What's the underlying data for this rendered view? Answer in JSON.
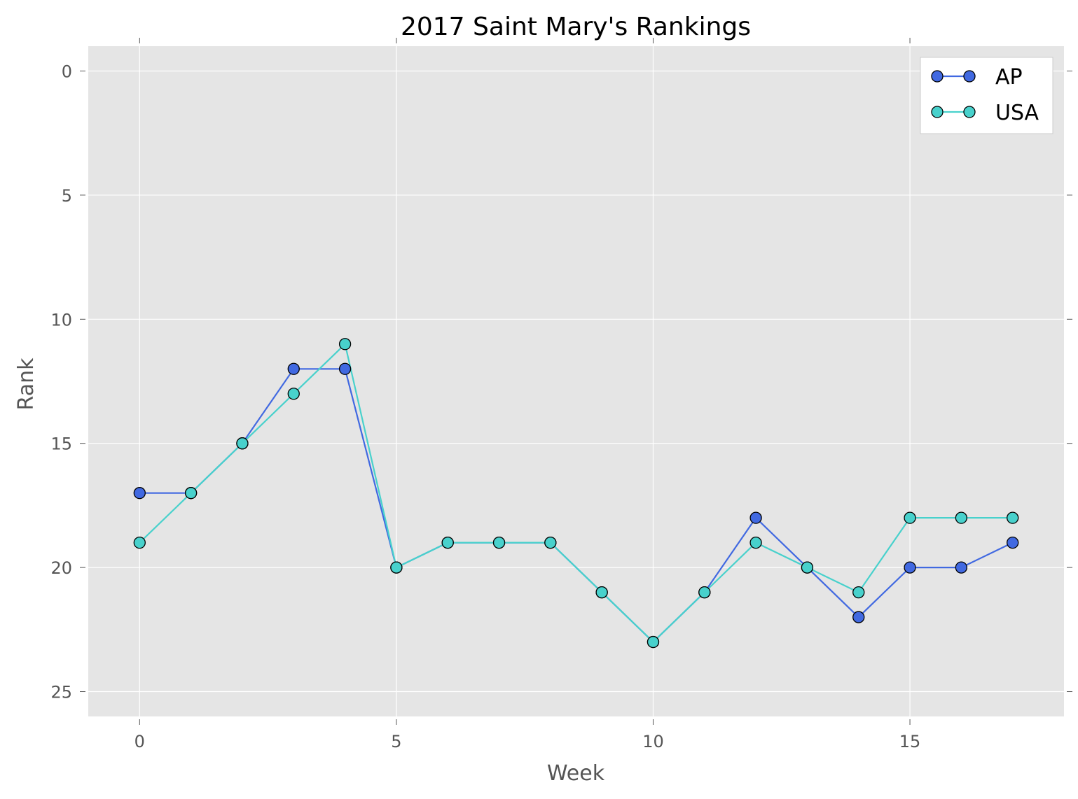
{
  "chart_data": {
    "type": "line",
    "title": "2017 Saint Mary's Rankings",
    "xlabel": "Week",
    "ylabel": "Rank",
    "xlim": [
      -1,
      18
    ],
    "ylim": [
      26,
      -1
    ],
    "y_inverted": true,
    "xticks": [
      0,
      5,
      10,
      15
    ],
    "yticks": [
      0,
      5,
      10,
      15,
      20,
      25
    ],
    "grid": true,
    "legend_position": "top-right",
    "x": [
      0,
      1,
      2,
      3,
      4,
      5,
      6,
      7,
      8,
      9,
      10,
      11,
      12,
      13,
      14,
      15,
      16,
      17
    ],
    "series": [
      {
        "name": "AP",
        "color": "#4169e1",
        "marker": "circle",
        "values": [
          17,
          17,
          15,
          12,
          12,
          20,
          19,
          19,
          19,
          21,
          23,
          21,
          18,
          20,
          22,
          20,
          20,
          19
        ]
      },
      {
        "name": "USA",
        "color": "#48d1cc",
        "marker": "circle",
        "values": [
          19,
          17,
          15,
          13,
          11,
          20,
          19,
          19,
          19,
          21,
          23,
          21,
          19,
          20,
          21,
          18,
          18,
          18
        ]
      }
    ]
  }
}
